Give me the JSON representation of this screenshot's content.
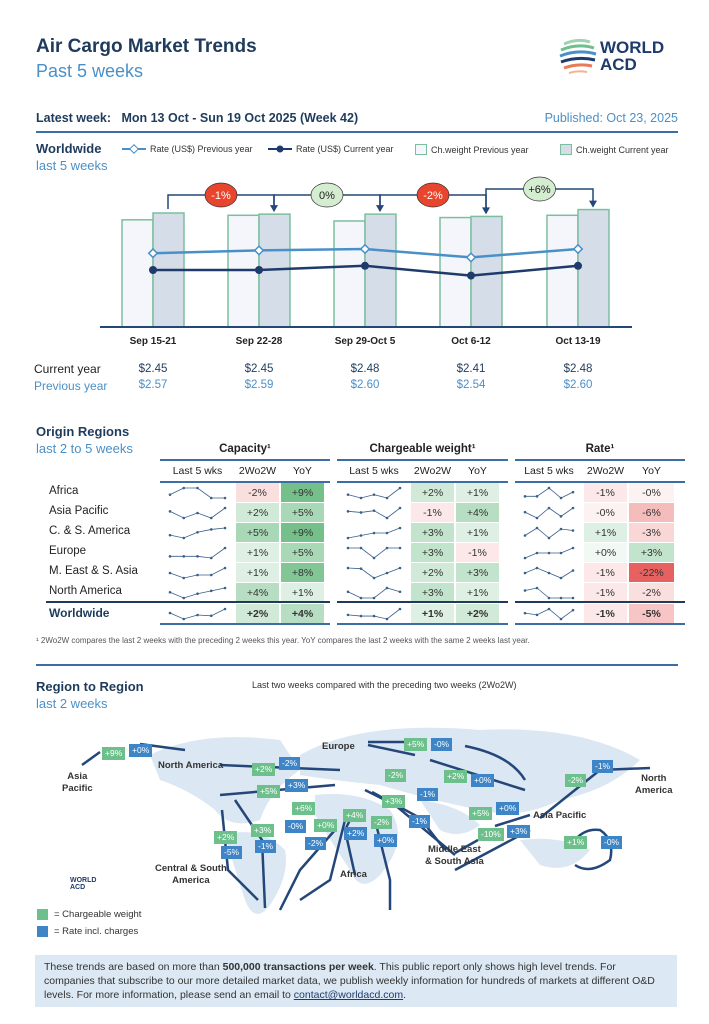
{
  "header": {
    "title": "Air Cargo Market Trends",
    "subtitle": "Past 5 weeks",
    "logo_text": [
      "WORLD",
      "ACD"
    ],
    "latest_label": "Latest week:",
    "latest_value": "Mon 13 Oct - Sun 19 Oct 2025 (Week 42)",
    "published": "Published: Oct 23, 2025"
  },
  "worldwide": {
    "title": "Worldwide",
    "subtitle": "last 5 weeks",
    "legend": [
      "Rate (US$) Previous year",
      "Rate (US$) Current year",
      "Ch.weight Previous year",
      "Ch.weight Current year"
    ],
    "row_current": "Current year",
    "row_previous": "Previous year"
  },
  "chart_data": {
    "type": "bar+line",
    "categories": [
      "Sep 15-21",
      "Sep 22-28",
      "Sep 29-Oct 5",
      "Oct 6-12",
      "Oct 13-19"
    ],
    "series": [
      {
        "name": "Rate (US$) Previous year",
        "type": "line",
        "values": [
          2.57,
          2.59,
          2.6,
          2.54,
          2.6
        ],
        "labels": [
          "$2.57",
          "$2.59",
          "$2.60",
          "$2.54",
          "$2.60"
        ]
      },
      {
        "name": "Rate (US$) Current year",
        "type": "line",
        "values": [
          2.45,
          2.45,
          2.48,
          2.41,
          2.48
        ],
        "labels": [
          "$2.45",
          "$2.45",
          "$2.48",
          "$2.41",
          "$2.48"
        ]
      },
      {
        "name": "Ch.weight Previous year",
        "type": "bar",
        "values": [
          94,
          98,
          93,
          96,
          98
        ]
      },
      {
        "name": "Ch.weight Current year",
        "type": "bar",
        "values": [
          100,
          99,
          99,
          97,
          103
        ]
      }
    ],
    "week_changes": [
      {
        "label": "-1%",
        "color": "#e8452c"
      },
      {
        "label": "0%",
        "color": "#d4ecd0"
      },
      {
        "label": "-2%",
        "color": "#e8452c"
      },
      {
        "label": "+6%",
        "color": "#d4ecd0"
      }
    ],
    "colors": {
      "prev_rate": "#4a90c8",
      "cur_rate": "#1f3b6c",
      "bar_stroke": "#7cbf9e",
      "prev_bar": "#f4f6fb",
      "cur_bar": "#d5dde9"
    }
  },
  "origin": {
    "title": "Origin Regions",
    "subtitle": "last 2 to 5 weeks",
    "groups": [
      "Capacity¹",
      "Chargeable weight¹",
      "Rate¹"
    ],
    "cols": [
      "Last 5 wks",
      "2Wo2W",
      "YoY"
    ],
    "rows": [
      {
        "name": "Africa",
        "cap": [
          "-2%",
          "+9%"
        ],
        "cw": [
          "+2%",
          "+1%"
        ],
        "rate": [
          "-1%",
          "-0%"
        ],
        "sp": [
          [
            3,
            4,
            4,
            2.5,
            2.5
          ],
          [
            2,
            1.5,
            2,
            1.5,
            3
          ],
          [
            1,
            1,
            2,
            0.8,
            1.5
          ]
        ]
      },
      {
        "name": "Asia Pacific",
        "cap": [
          "+2%",
          "+5%"
        ],
        "cw": [
          "-1%",
          "+4%"
        ],
        "rate": [
          "-0%",
          "-6%"
        ],
        "sp": [
          [
            3,
            1,
            2.5,
            1,
            4
          ],
          [
            3,
            2.5,
            3.3,
            0,
            4.5
          ],
          [
            1.5,
            0.8,
            2,
            1,
            2
          ]
        ]
      },
      {
        "name": "C. & S. America",
        "cap": [
          "+5%",
          "+9%"
        ],
        "cw": [
          "+3%",
          "+1%"
        ],
        "rate": [
          "+1%",
          "-3%"
        ],
        "sp": [
          [
            1,
            0,
            2,
            3,
            3.5
          ],
          [
            1,
            1.5,
            2,
            2,
            3
          ],
          [
            1,
            2.5,
            0.5,
            2.3,
            2
          ]
        ]
      },
      {
        "name": "Europe",
        "cap": [
          "+1%",
          "+5%"
        ],
        "cw": [
          "+3%",
          "-1%"
        ],
        "rate": [
          "+0%",
          "+3%"
        ],
        "sp": [
          [
            2,
            2,
            2,
            1.8,
            3
          ],
          [
            3,
            3,
            2,
            3,
            3
          ],
          [
            1,
            1.5,
            1.5,
            1.5,
            2
          ]
        ]
      },
      {
        "name": "M. East & S. Asia",
        "cap": [
          "+1%",
          "+8%"
        ],
        "cw": [
          "+2%",
          "+3%"
        ],
        "rate": [
          "-1%",
          "-22%"
        ],
        "sp": [
          [
            2,
            1.5,
            1.8,
            1.8,
            2.5
          ],
          [
            3,
            2.8,
            0,
            1.5,
            3
          ],
          [
            1.5,
            2.5,
            1.5,
            0.5,
            2
          ]
        ]
      },
      {
        "name": "North America",
        "cap": [
          "+4%",
          "+1%"
        ],
        "cw": [
          "+3%",
          "+1%"
        ],
        "rate": [
          "-1%",
          "-2%"
        ],
        "sp": [
          [
            1,
            -1,
            0.5,
            1.5,
            2.5
          ],
          [
            2.5,
            2,
            2,
            2.8,
            2.5
          ],
          [
            3,
            3.5,
            1.5,
            1.5,
            1.5
          ]
        ]
      },
      {
        "name": "Worldwide",
        "cap": [
          "+2%",
          "+4%"
        ],
        "cw": [
          "+1%",
          "+2%"
        ],
        "rate": [
          "-1%",
          "-5%"
        ],
        "sp": [
          [
            2,
            0.5,
            1.5,
            1.3,
            3
          ],
          [
            2,
            1.8,
            1.8,
            1.3,
            3
          ],
          [
            1.5,
            1.2,
            2.2,
            0.5,
            2
          ]
        ]
      }
    ],
    "footnote": "¹ 2Wo2W compares the last 2 weeks with the preceding 2 weeks this year. YoY compares the last 2 weeks with the same 2 weeks last year."
  },
  "region": {
    "title": "Region to Region",
    "subtitle": "last 2 weeks",
    "caption": "Last two weeks compared with the preceding two weeks (2Wo2W)",
    "labels": [
      "Asia\nPacific",
      "North America",
      "Europe",
      "North\nAmerica",
      "Asia Pacific",
      "Middle East\n& South Asia",
      "Africa",
      "Central & South\nAmerica"
    ],
    "badges": [
      {
        "t": "+9%",
        "k": "g"
      },
      {
        "t": "+0%",
        "k": "b"
      },
      {
        "t": "+5%",
        "k": "g"
      },
      {
        "t": "-0%",
        "k": "b"
      },
      {
        "t": "+2%",
        "k": "g"
      },
      {
        "t": "-2%",
        "k": "b"
      },
      {
        "t": "+5%",
        "k": "g"
      },
      {
        "t": "+3%",
        "k": "b"
      },
      {
        "t": "-2%",
        "k": "g"
      },
      {
        "t": "-1%",
        "k": "b"
      },
      {
        "t": "+2%",
        "k": "g"
      },
      {
        "t": "+0%",
        "k": "b"
      },
      {
        "t": "+3%",
        "k": "g"
      },
      {
        "t": "-1%",
        "k": "b"
      },
      {
        "t": "+6%",
        "k": "g"
      },
      {
        "t": "-0%",
        "k": "b"
      },
      {
        "t": "+0%",
        "k": "g"
      },
      {
        "t": "-2%",
        "k": "b"
      },
      {
        "t": "+4%",
        "k": "g"
      },
      {
        "t": "+2%",
        "k": "b"
      },
      {
        "t": "-2%",
        "k": "g"
      },
      {
        "t": "+0%",
        "k": "b"
      },
      {
        "t": "+2%",
        "k": "g"
      },
      {
        "t": "-5%",
        "k": "b"
      },
      {
        "t": "+3%",
        "k": "g"
      },
      {
        "t": "-1%",
        "k": "b"
      },
      {
        "t": "+5%",
        "k": "g"
      },
      {
        "t": "+0%",
        "k": "b"
      },
      {
        "t": "-10%",
        "k": "g"
      },
      {
        "t": "+3%",
        "k": "b"
      },
      {
        "t": "-2%",
        "k": "g"
      },
      {
        "t": "-1%",
        "k": "b"
      },
      {
        "t": "+1%",
        "k": "g"
      },
      {
        "t": "-0%",
        "k": "b"
      }
    ],
    "legend": [
      "= Chargeable weight",
      "= Rate incl. charges"
    ],
    "colors": {
      "weight": "#6dbf8b",
      "rate": "#3d85c6"
    }
  },
  "footer": {
    "pre": "These trends are based on more than ",
    "bold": "500,000 transactions per week",
    "post": ". This public report only shows high level trends. For companies that subscribe to our more detailed market data, we publish weekly information for hundreds of markets at different O&D levels. For more information, please send an email to ",
    "email": "contact@worldacd.com",
    "end": "."
  }
}
